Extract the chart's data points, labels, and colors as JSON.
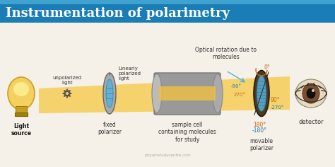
{
  "title": "Instrumentation of polarimetry",
  "title_bg": "#1a7db5",
  "title_text_color": "#ffffff",
  "bg_color": "#f5f0e8",
  "beam_color": "#f5c842",
  "beam_alpha": 0.7,
  "labels": {
    "light_source": "Light\nsource",
    "unpolarized": "unpolarized\nlight",
    "linearly": "Linearly\npolarized\nlight",
    "fixed_polarizer": "fixed\npolarizer",
    "sample_cell": "sample cell\ncontaining molecules\nfor study",
    "optical_rotation": "Optical rotation due to\nmolecules",
    "movable_polarizer": "movable\npolarizer",
    "detector": "detector",
    "deg_0": "0°",
    "deg_90_orange": "90°",
    "deg_180_orange": "180°",
    "deg_neg90_blue": "-90°",
    "deg_270_orange": "270°",
    "deg_neg270_blue": "-270°",
    "deg_neg180_blue": "-180°",
    "watermark": "priyamstudycentre.com"
  },
  "colors": {
    "orange_label": "#c8690a",
    "blue_label": "#1a7db5",
    "dark_text": "#333333",
    "gray_polarizer": "#888888",
    "beam_yellow": "#f0c040",
    "blue_crystal": "#5ab0d8",
    "dark_ellipse": "#4a3a28"
  }
}
